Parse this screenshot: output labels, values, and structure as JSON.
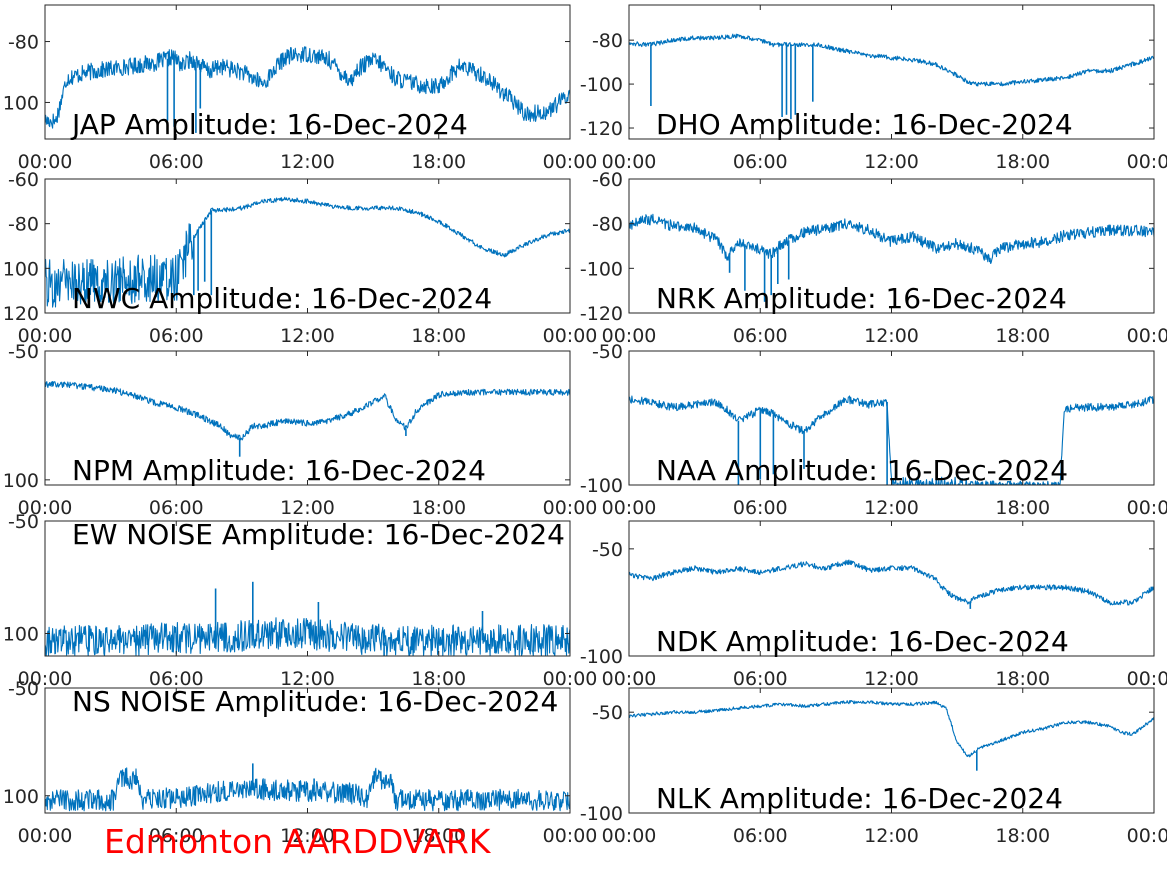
{
  "caption": {
    "text": "Edmonton AARDDVARK",
    "color": "#ff0000"
  },
  "style": {
    "line_color": "#0072bd",
    "axes_color": "#262626"
  },
  "x_ticks": [
    "00:00",
    "06:00",
    "12:00",
    "18:00",
    "00:00"
  ],
  "chart_data": [
    {
      "type": "line",
      "title": "JAP Amplitude: 16-Dec-2024",
      "x_hours_range": [
        0,
        24
      ],
      "ylim": [
        -112,
        -68
      ],
      "y_ticks": [
        {
          "value": -80,
          "label": "-80"
        },
        {
          "value": -100,
          "label": "100"
        }
      ],
      "x": [
        0,
        0.5,
        1,
        2,
        3,
        4,
        5,
        5.5,
        5.8,
        6,
        6.3,
        6.6,
        7,
        7.5,
        8,
        8.5,
        9,
        9.5,
        10,
        10.5,
        11,
        12,
        12.5,
        13,
        13.5,
        14,
        14.3,
        15,
        15.5,
        16,
        17,
        18,
        18.5,
        19,
        20,
        21,
        22,
        23,
        24
      ],
      "values": [
        -106,
        -106,
        -92,
        -90,
        -89,
        -88,
        -87,
        -86,
        -85,
        -86,
        -88,
        -86,
        -87,
        -90,
        -88,
        -89,
        -90,
        -92,
        -94,
        -89,
        -85,
        -84,
        -85,
        -86,
        -90,
        -93,
        -89,
        -86,
        -88,
        -92,
        -94,
        -95,
        -91,
        -88,
        -91,
        -97,
        -104,
        -103,
        -97
      ],
      "noise": 2.8,
      "spikes": [
        {
          "x": 5.6,
          "to": -106
        },
        {
          "x": 5.9,
          "to": -108
        },
        {
          "x": 6.9,
          "to": -110
        },
        {
          "x": 7.1,
          "to": -102
        }
      ]
    },
    {
      "type": "line",
      "title": "DHO Amplitude: 16-Dec-2024",
      "x_hours_range": [
        0,
        24
      ],
      "ylim": [
        -125,
        -64
      ],
      "y_ticks": [
        {
          "value": -80,
          "label": "-80"
        },
        {
          "value": -100,
          "label": "-100"
        },
        {
          "value": -120,
          "label": "-120"
        }
      ],
      "x": [
        0,
        0.5,
        1,
        2,
        3,
        4,
        5,
        6,
        6.5,
        7,
        7.5,
        8,
        8.5,
        9,
        10,
        11,
        12,
        13,
        14,
        15,
        15.5,
        16,
        17,
        18,
        19,
        20,
        21,
        22,
        23,
        24
      ],
      "values": [
        -81,
        -82,
        -82,
        -80,
        -79,
        -79,
        -78,
        -80,
        -82,
        -82,
        -82,
        -82,
        -82,
        -83,
        -85,
        -87,
        -88,
        -89,
        -91,
        -96,
        -99,
        -100,
        -100,
        -99,
        -98,
        -97,
        -94,
        -94,
        -91,
        -88
      ],
      "noise": 1.0,
      "spikes": [
        {
          "x": 1.0,
          "to": -110
        },
        {
          "x": 7.0,
          "to": -115
        },
        {
          "x": 7.2,
          "to": -114
        },
        {
          "x": 7.4,
          "to": -116
        },
        {
          "x": 7.6,
          "to": -114
        },
        {
          "x": 8.4,
          "to": -108
        }
      ]
    },
    {
      "type": "line",
      "title": "NWC Amplitude: 16-Dec-2024",
      "x_hours_range": [
        0,
        24
      ],
      "ylim": [
        -120,
        -60
      ],
      "y_ticks": [
        {
          "value": -60,
          "label": "-60"
        },
        {
          "value": -80,
          "label": "-80"
        },
        {
          "value": -100,
          "label": "100"
        },
        {
          "value": -120,
          "label": "120"
        }
      ],
      "x": [
        0,
        2,
        4,
        6,
        6.8,
        7.2,
        7.6,
        8,
        9,
        10,
        11,
        12,
        13,
        14,
        15,
        16,
        17,
        18,
        19,
        20,
        21,
        22,
        23,
        24
      ],
      "values": [
        -107,
        -106,
        -105,
        -104,
        -86,
        -80,
        -74,
        -74,
        -73,
        -70,
        -69,
        -70,
        -72,
        -73,
        -73,
        -73,
        -75,
        -79,
        -85,
        -91,
        -94,
        -89,
        -85,
        -83
      ],
      "noise": 1.0,
      "noise_segments": [
        {
          "from": 0,
          "to": 6.8,
          "amp": 11
        }
      ],
      "spikes": [
        {
          "x": 6.8,
          "to": -112
        },
        {
          "x": 7.0,
          "to": -110
        },
        {
          "x": 7.3,
          "to": -106
        },
        {
          "x": 7.6,
          "to": -112
        }
      ]
    },
    {
      "type": "line",
      "title": "NRK Amplitude: 16-Dec-2024",
      "x_hours_range": [
        0,
        24
      ],
      "ylim": [
        -120,
        -60
      ],
      "y_ticks": [
        {
          "value": -60,
          "label": "-60"
        },
        {
          "value": -80,
          "label": "-80"
        },
        {
          "value": -100,
          "label": "-100"
        },
        {
          "value": -120,
          "label": "-120"
        }
      ],
      "x": [
        0,
        0.5,
        1,
        2,
        3,
        4,
        4.5,
        5,
        5.5,
        6,
        6.5,
        7,
        8,
        9,
        10,
        11,
        12,
        13,
        14,
        15,
        16,
        16.5,
        17,
        18,
        19,
        20,
        21,
        22,
        23,
        24
      ],
      "values": [
        -81,
        -79,
        -78,
        -81,
        -82,
        -87,
        -95,
        -88,
        -90,
        -92,
        -94,
        -89,
        -84,
        -82,
        -80,
        -83,
        -88,
        -86,
        -91,
        -89,
        -92,
        -96,
        -91,
        -89,
        -88,
        -85,
        -84,
        -83,
        -83,
        -84
      ],
      "noise": 2.5,
      "spikes": [
        {
          "x": 4.6,
          "to": -102
        },
        {
          "x": 5.3,
          "to": -110
        },
        {
          "x": 6.2,
          "to": -115
        },
        {
          "x": 6.5,
          "to": -112
        },
        {
          "x": 6.8,
          "to": -107
        },
        {
          "x": 7.3,
          "to": -105
        }
      ]
    },
    {
      "type": "line",
      "title": "NPM Amplitude: 16-Dec-2024",
      "x_hours_range": [
        0,
        24
      ],
      "ylim": [
        -102,
        -50
      ],
      "y_ticks": [
        {
          "value": -50,
          "label": "-50"
        },
        {
          "value": -100,
          "label": "100"
        }
      ],
      "x": [
        0,
        1,
        2,
        3,
        4,
        5,
        6,
        7,
        8,
        8.5,
        9,
        9.5,
        10,
        11,
        12,
        13,
        14,
        15,
        15.5,
        16,
        16.5,
        17,
        18,
        19,
        20,
        21,
        22,
        23,
        24
      ],
      "values": [
        -63,
        -63,
        -64,
        -65,
        -67,
        -70,
        -72,
        -75,
        -79,
        -83,
        -84,
        -79,
        -79,
        -77,
        -78,
        -77,
        -74,
        -70,
        -67,
        -76,
        -80,
        -73,
        -67,
        -66,
        -66,
        -66,
        -66,
        -66,
        -66
      ],
      "noise": 1.2,
      "spikes": [
        {
          "x": 8.9,
          "to": -91
        },
        {
          "x": 16.5,
          "to": -83
        }
      ]
    },
    {
      "type": "line",
      "title": "NAA Amplitude: 16-Dec-2024",
      "x_hours_range": [
        0,
        24
      ],
      "ylim": [
        -100,
        -50
      ],
      "y_ticks": [
        {
          "value": -50,
          "label": "-50"
        },
        {
          "value": -100,
          "label": "-100"
        }
      ],
      "x": [
        0,
        1,
        2,
        3,
        4,
        4.5,
        5,
        6,
        6.5,
        7,
        7.5,
        8,
        9,
        10,
        11,
        11.8,
        12,
        14,
        16,
        18,
        19.7,
        19.9,
        20.5,
        21,
        22,
        23,
        24
      ],
      "values": [
        -68,
        -69,
        -71,
        -70,
        -69,
        -72,
        -76,
        -72,
        -73,
        -76,
        -78,
        -80,
        -73,
        -68,
        -70,
        -69,
        -100,
        -100,
        -100,
        -100,
        -100,
        -72,
        -71,
        -71,
        -71,
        -70,
        -68
      ],
      "noise": 1.5,
      "noise_segments": [
        {
          "from": 12,
          "to": 15.5,
          "amp": 3
        }
      ],
      "spikes": [
        {
          "x": 5.0,
          "to": -100
        },
        {
          "x": 6.0,
          "to": -98
        },
        {
          "x": 6.6,
          "to": -96
        },
        {
          "x": 8.0,
          "to": -94
        },
        {
          "x": 11.8,
          "to": -100
        }
      ]
    },
    {
      "type": "line",
      "title": "EW NOISE Amplitude: 16-Dec-2024",
      "x_hours_range": [
        0,
        24
      ],
      "ylim": [
        -110,
        -50
      ],
      "y_ticks": [
        {
          "value": -50,
          "label": "-50"
        },
        {
          "value": -100,
          "label": "100"
        }
      ],
      "x": [
        0,
        2,
        4,
        6,
        8,
        10,
        12,
        14,
        15,
        15.4,
        15.6,
        16,
        18,
        20,
        22,
        24
      ],
      "values": [
        -104,
        -103,
        -103,
        -102,
        -102,
        -100,
        -100,
        -102,
        -103,
        -102,
        -106,
        -104,
        -103,
        -103,
        -103,
        -103
      ],
      "noise": 7,
      "spikes": [
        {
          "x": 7.8,
          "to": -80
        },
        {
          "x": 9.5,
          "to": -77
        },
        {
          "x": 12.5,
          "to": -86
        },
        {
          "x": 15.5,
          "to": -110
        },
        {
          "x": 20.0,
          "to": -90
        }
      ]
    },
    {
      "type": "line",
      "title": "NDK Amplitude: 16-Dec-2024",
      "x_hours_range": [
        0,
        24
      ],
      "ylim": [
        -100,
        -37
      ],
      "y_ticks": [
        {
          "value": -50,
          "label": "-50"
        },
        {
          "value": -100,
          "label": "-100"
        }
      ],
      "x": [
        0,
        1,
        2,
        3,
        4,
        5,
        6,
        7,
        8,
        9,
        10,
        11,
        12,
        13,
        14,
        14.5,
        15,
        15.5,
        16,
        17,
        18,
        19,
        20,
        21,
        22,
        23,
        24
      ],
      "values": [
        -62,
        -64,
        -61,
        -59,
        -61,
        -59,
        -61,
        -59,
        -57,
        -59,
        -56,
        -60,
        -59,
        -59,
        -64,
        -70,
        -73,
        -75,
        -72,
        -69,
        -68,
        -68,
        -68,
        -70,
        -75,
        -75,
        -68
      ],
      "noise": 1.2,
      "spikes": [
        {
          "x": 15.6,
          "to": -78
        }
      ]
    },
    {
      "type": "line",
      "title": "NS NOISE Amplitude: 16-Dec-2024",
      "x_hours_range": [
        0,
        24
      ],
      "ylim": [
        -108,
        -50
      ],
      "y_ticks": [
        {
          "value": -50,
          "label": "-50"
        },
        {
          "value": -100,
          "label": "100"
        }
      ],
      "x": [
        0,
        2,
        3.2,
        3.4,
        4.2,
        4.4,
        6,
        8,
        10,
        12,
        14,
        14.8,
        15,
        15.8,
        16,
        18,
        20,
        22,
        24
      ],
      "values": [
        -102,
        -102,
        -102,
        -92,
        -92,
        -102,
        -101,
        -98,
        -97,
        -98,
        -99,
        -101,
        -92,
        -92,
        -102,
        -102,
        -102,
        -102,
        -102
      ],
      "noise": 5,
      "spikes": [
        {
          "x": 9.5,
          "to": -85
        },
        {
          "x": 12.3,
          "to": -92
        }
      ]
    },
    {
      "type": "line",
      "title": "NLK Amplitude: 16-Dec-2024",
      "x_hours_range": [
        0,
        24
      ],
      "ylim": [
        -100,
        -38
      ],
      "y_ticks": [
        {
          "value": -50,
          "label": "-50"
        },
        {
          "value": -100,
          "label": "-100"
        }
      ],
      "x": [
        0,
        1,
        2,
        3,
        4,
        5,
        6,
        7,
        8,
        9,
        10,
        11,
        12,
        13,
        14,
        14.5,
        15,
        15.5,
        16,
        17,
        18,
        19,
        20,
        21,
        22,
        22.5,
        23,
        24
      ],
      "values": [
        -52,
        -51,
        -50,
        -50,
        -49,
        -48,
        -47,
        -46,
        -47,
        -46,
        -45,
        -45,
        -46,
        -46,
        -45,
        -48,
        -65,
        -72,
        -68,
        -64,
        -60,
        -58,
        -55,
        -55,
        -57,
        -60,
        -61,
        -53
      ],
      "noise": 0.8,
      "spikes": [
        {
          "x": 15.9,
          "to": -79
        }
      ]
    }
  ]
}
